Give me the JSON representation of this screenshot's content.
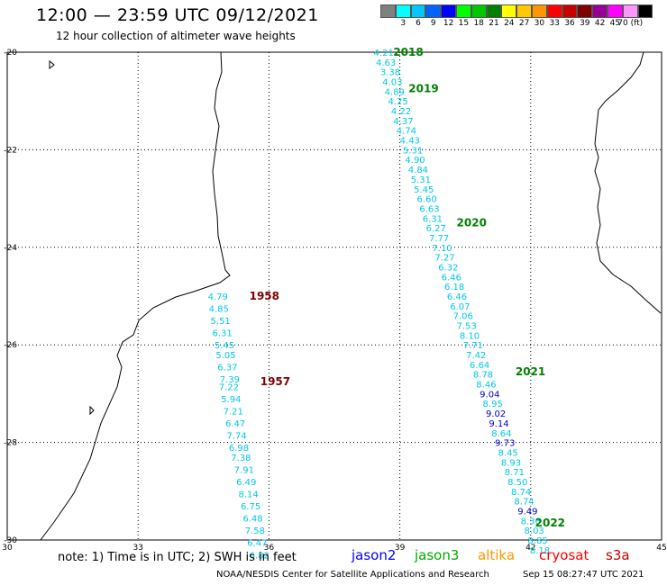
{
  "header": {
    "title": "12:00 — 23:59 UTC 09/12/2021",
    "subtitle": "12 hour collection of altimeter wave heights"
  },
  "colorbar": {
    "colors": [
      "#808080",
      "#00ffff",
      "#00c8ff",
      "#0064ff",
      "#0000ff",
      "#00ff00",
      "#00c800",
      "#008000",
      "#ffff00",
      "#ffc800",
      "#ff9600",
      "#ff0000",
      "#c80000",
      "#800000",
      "#960096",
      "#ff00ff",
      "#ff96ff",
      "#000000"
    ],
    "labels": [
      "3",
      "6",
      "9",
      "12",
      "15",
      "18",
      "21",
      "24",
      "27",
      "30",
      "33",
      "36",
      "39",
      "42",
      "45",
      "70 (ft)"
    ]
  },
  "axes": {
    "lon_ticks": [
      "30",
      "33",
      "36",
      "39",
      "42",
      "45"
    ],
    "lat_ticks": [
      "-20",
      "-22",
      "-24",
      "-26",
      "-28",
      "-30"
    ]
  },
  "passes": [
    {
      "id": "2018",
      "color": "#00aa00",
      "points": [
        {
          "lon": 38.4,
          "lat": -20.0,
          "v": "4.21"
        },
        {
          "lon": 38.45,
          "lat": -20.2,
          "v": "4.63"
        },
        {
          "lon": 38.55,
          "lat": -20.4,
          "v": "3.38"
        },
        {
          "lon": 38.6,
          "lat": -20.6,
          "v": "4.03"
        },
        {
          "lon": 38.65,
          "lat": -20.8,
          "v": "4.89"
        },
        {
          "lon": 38.73,
          "lat": -21.0,
          "v": "4.25"
        },
        {
          "lon": 38.8,
          "lat": -21.2,
          "v": "4.22"
        },
        {
          "lon": 38.85,
          "lat": -21.4,
          "v": "4.37"
        },
        {
          "lon": 38.92,
          "lat": -21.6,
          "v": "4.74"
        },
        {
          "lon": 39.0,
          "lat": -21.8,
          "v": "4.43"
        },
        {
          "lon": 39.07,
          "lat": -22.0,
          "v": "5.31"
        },
        {
          "lon": 39.12,
          "lat": -22.2,
          "v": "4.90"
        },
        {
          "lon": 39.19,
          "lat": -22.4,
          "v": "4.84"
        }
      ]
    },
    {
      "id": "2019",
      "color": "#00aa00",
      "points": [
        {
          "lon": 39.25,
          "lat": -22.6,
          "v": "5.31"
        },
        {
          "lon": 39.32,
          "lat": -22.8,
          "v": "5.45"
        },
        {
          "lon": 39.39,
          "lat": -23.0,
          "v": "6.60"
        },
        {
          "lon": 39.45,
          "lat": -23.2,
          "v": "6.63"
        },
        {
          "lon": 39.52,
          "lat": -23.4,
          "v": "6.31"
        },
        {
          "lon": 39.6,
          "lat": -23.6,
          "v": "6.27"
        },
        {
          "lon": 39.67,
          "lat": -23.8,
          "v": "7.77"
        },
        {
          "lon": 39.74,
          "lat": -24.0,
          "v": "7.10"
        }
      ]
    },
    {
      "id": "2020",
      "color": "#00aa00",
      "points": [
        {
          "lon": 39.8,
          "lat": -24.2,
          "v": "7.27"
        },
        {
          "lon": 39.88,
          "lat": -24.4,
          "v": "6.32"
        },
        {
          "lon": 39.95,
          "lat": -24.6,
          "v": "6.46"
        },
        {
          "lon": 40.02,
          "lat": -24.8,
          "v": "6.18"
        },
        {
          "lon": 40.08,
          "lat": -25.0,
          "v": "6.46"
        },
        {
          "lon": 40.15,
          "lat": -25.2,
          "v": "6.07"
        },
        {
          "lon": 40.22,
          "lat": -25.4,
          "v": "7.06"
        },
        {
          "lon": 40.3,
          "lat": -25.6,
          "v": "7.53"
        },
        {
          "lon": 40.37,
          "lat": -25.8,
          "v": "8.10"
        },
        {
          "lon": 40.45,
          "lat": -26.0,
          "v": "7.71"
        },
        {
          "lon": 40.52,
          "lat": -26.2,
          "v": "7.42"
        },
        {
          "lon": 40.6,
          "lat": -26.4,
          "v": "6.64"
        }
      ]
    },
    {
      "id": "2021",
      "color": "#00aa00",
      "points": [
        {
          "lon": 40.68,
          "lat": -26.6,
          "v": "8.78"
        },
        {
          "lon": 40.75,
          "lat": -26.8,
          "v": "8.46"
        },
        {
          "lon": 40.83,
          "lat": -27.0,
          "v": "9.04",
          "blue": true
        },
        {
          "lon": 40.9,
          "lat": -27.2,
          "v": "8.95"
        },
        {
          "lon": 40.97,
          "lat": -27.4,
          "v": "9.02",
          "blue": true
        },
        {
          "lon": 41.04,
          "lat": -27.6,
          "v": "9.14",
          "blue": true
        },
        {
          "lon": 41.1,
          "lat": -27.8,
          "v": "8.64"
        },
        {
          "lon": 41.18,
          "lat": -28.0,
          "v": "9.73",
          "blue": true
        },
        {
          "lon": 41.25,
          "lat": -28.2,
          "v": "8.45"
        },
        {
          "lon": 41.32,
          "lat": -28.4,
          "v": "8.93"
        },
        {
          "lon": 41.4,
          "lat": -28.6,
          "v": "8.71"
        },
        {
          "lon": 41.47,
          "lat": -28.8,
          "v": "8.50"
        },
        {
          "lon": 41.55,
          "lat": -29.0,
          "v": "8.74"
        },
        {
          "lon": 41.62,
          "lat": -29.2,
          "v": "8.74"
        },
        {
          "lon": 41.7,
          "lat": -29.4,
          "v": "9.49",
          "blue": true
        },
        {
          "lon": 41.77,
          "lat": -29.6,
          "v": "8.36"
        },
        {
          "lon": 41.85,
          "lat": -29.8,
          "v": "8.03"
        },
        {
          "lon": 41.93,
          "lat": -30.0,
          "v": "8.85"
        },
        {
          "lon": 41.98,
          "lat": -30.2,
          "v": "8.18"
        }
      ]
    },
    {
      "id": "1958",
      "color": "#800000",
      "points": [
        {
          "lon": 34.6,
          "lat": -25.0,
          "v": "4.79"
        },
        {
          "lon": 34.62,
          "lat": -25.25,
          "v": "4.85"
        },
        {
          "lon": 34.66,
          "lat": -25.5,
          "v": "5.51"
        },
        {
          "lon": 34.7,
          "lat": -25.75,
          "v": "6.31"
        },
        {
          "lon": 34.75,
          "lat": -26.0,
          "v": "5.45"
        },
        {
          "lon": 34.78,
          "lat": -26.2,
          "v": "5.05"
        },
        {
          "lon": 34.82,
          "lat": -26.45,
          "v": "6.37"
        },
        {
          "lon": 34.87,
          "lat": -26.7,
          "v": "7.39"
        },
        {
          "lon": 34.85,
          "lat": -26.85,
          "v": "7.22"
        },
        {
          "lon": 34.9,
          "lat": -27.1,
          "v": "5.94"
        },
        {
          "lon": 34.95,
          "lat": -27.35,
          "v": "7.21"
        },
        {
          "lon": 35.0,
          "lat": -27.6,
          "v": "6.47"
        },
        {
          "lon": 35.03,
          "lat": -27.85,
          "v": "7.74"
        },
        {
          "lon": 35.08,
          "lat": -28.1,
          "v": "6.98"
        },
        {
          "lon": 35.13,
          "lat": -28.3,
          "v": "7.38"
        },
        {
          "lon": 35.2,
          "lat": -28.55,
          "v": "7.91"
        },
        {
          "lon": 35.25,
          "lat": -28.8,
          "v": "6.49"
        },
        {
          "lon": 35.3,
          "lat": -29.05,
          "v": "8.14"
        },
        {
          "lon": 35.35,
          "lat": -29.3,
          "v": "6.75"
        },
        {
          "lon": 35.4,
          "lat": -29.55,
          "v": "6.48"
        },
        {
          "lon": 35.45,
          "lat": -29.8,
          "v": "7.58"
        },
        {
          "lon": 35.5,
          "lat": -30.05,
          "v": "6.47"
        },
        {
          "lon": 35.55,
          "lat": -30.3,
          "v": "6.82"
        }
      ]
    }
  ],
  "pass_labels": [
    {
      "text": "2018",
      "lon": 38.85,
      "lat": -20.0,
      "color": "#008000"
    },
    {
      "text": "2019",
      "lon": 39.2,
      "lat": -20.75,
      "color": "#008000"
    },
    {
      "text": "2020",
      "lon": 40.3,
      "lat": -23.5,
      "color": "#008000"
    },
    {
      "text": "2021",
      "lon": 41.65,
      "lat": -26.55,
      "color": "#008000"
    },
    {
      "text": "2022",
      "lon": 42.1,
      "lat": -29.65,
      "color": "#008000"
    },
    {
      "text": "1958",
      "lon": 35.55,
      "lat": -25.0,
      "color": "#800000"
    },
    {
      "text": "1957",
      "lon": 35.8,
      "lat": -26.75,
      "color": "#800000"
    }
  ],
  "footer": {
    "note": "note: 1) Time is in UTC; 2) SWH is in feet",
    "satellites": [
      {
        "name": "jason2",
        "color": "#0000ff"
      },
      {
        "name": "jason3",
        "color": "#00aa00"
      },
      {
        "name": "altika",
        "color": "#ff9600"
      },
      {
        "name": "cryosat",
        "color": "#ff0000"
      },
      {
        "name": "s3a",
        "color": "#c80000"
      }
    ],
    "credit": "NOAA/NESDIS Center for Satellite Applications and Research",
    "timestamp": "Sep 15 08:27:47 UTC 2021"
  }
}
